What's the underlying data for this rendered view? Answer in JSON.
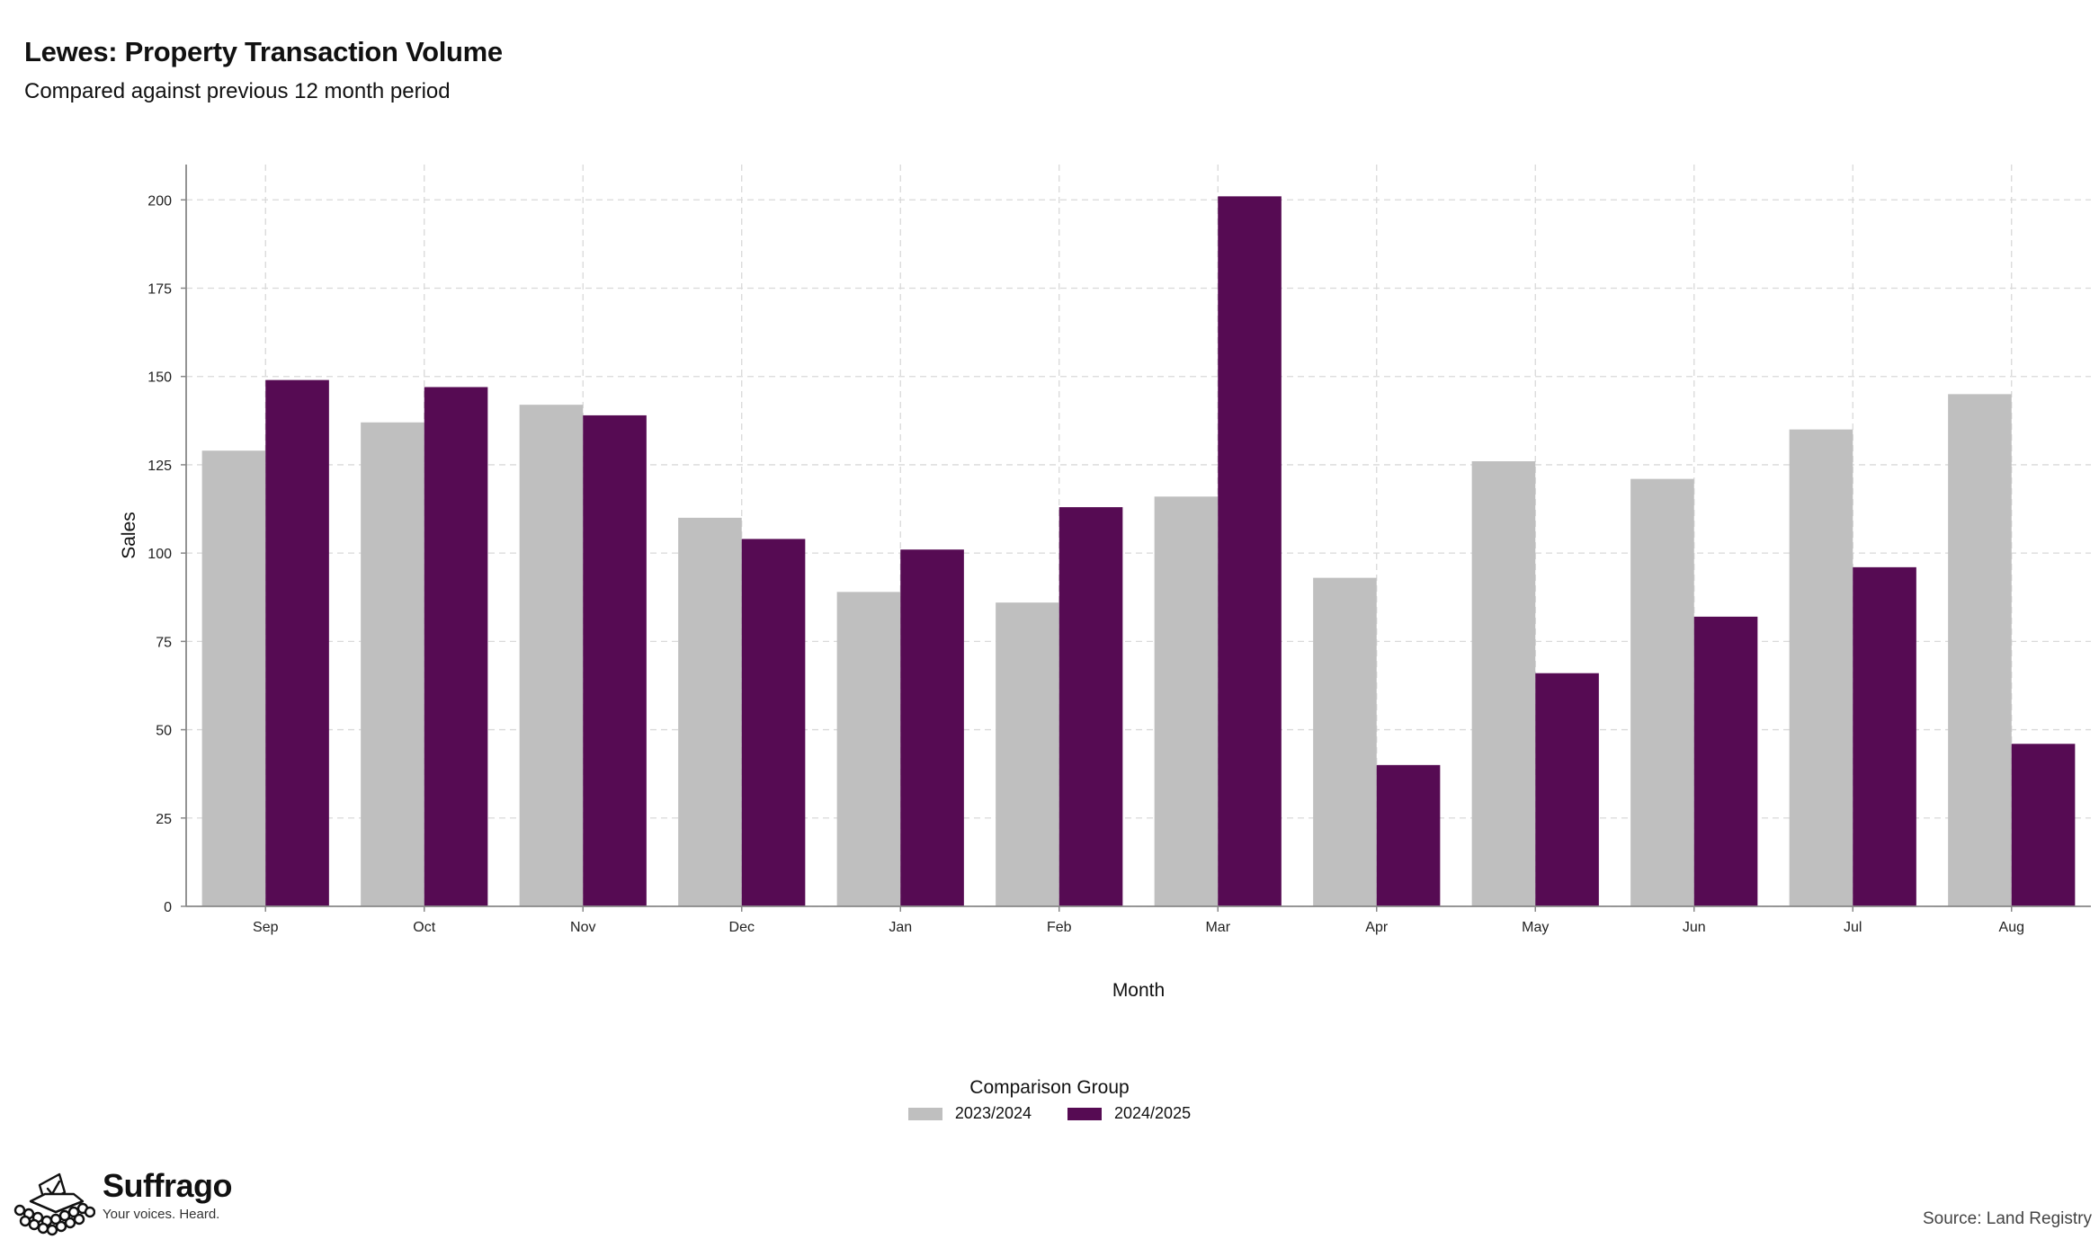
{
  "header": {
    "title": "Lewes: Property Transaction Volume",
    "subtitle": "Compared against previous 12 month period"
  },
  "chart_data": {
    "type": "bar",
    "categories": [
      "Sep",
      "Oct",
      "Nov",
      "Dec",
      "Jan",
      "Feb",
      "Mar",
      "Apr",
      "May",
      "Jun",
      "Jul",
      "Aug"
    ],
    "series": [
      {
        "name": "2023/2024",
        "color": "#bfbfbf",
        "values": [
          129,
          137,
          142,
          110,
          89,
          86,
          116,
          93,
          126,
          121,
          135,
          145
        ]
      },
      {
        "name": "2024/2025",
        "color": "#560b53",
        "values": [
          149,
          147,
          139,
          104,
          101,
          113,
          201,
          40,
          66,
          82,
          96,
          46
        ]
      }
    ],
    "xlabel": "Month",
    "ylabel": "Sales",
    "ylim": [
      0,
      210
    ],
    "yticks": [
      0,
      25,
      50,
      75,
      100,
      125,
      150,
      175,
      200
    ],
    "grid": true,
    "legend": {
      "title": "Comparison Group",
      "position": "bottom"
    }
  },
  "branding": {
    "name": "Suffrago",
    "tagline": "Your voices. Heard.",
    "icon": "ballot-box-icon"
  },
  "footer": {
    "source": "Source: Land Registry"
  }
}
